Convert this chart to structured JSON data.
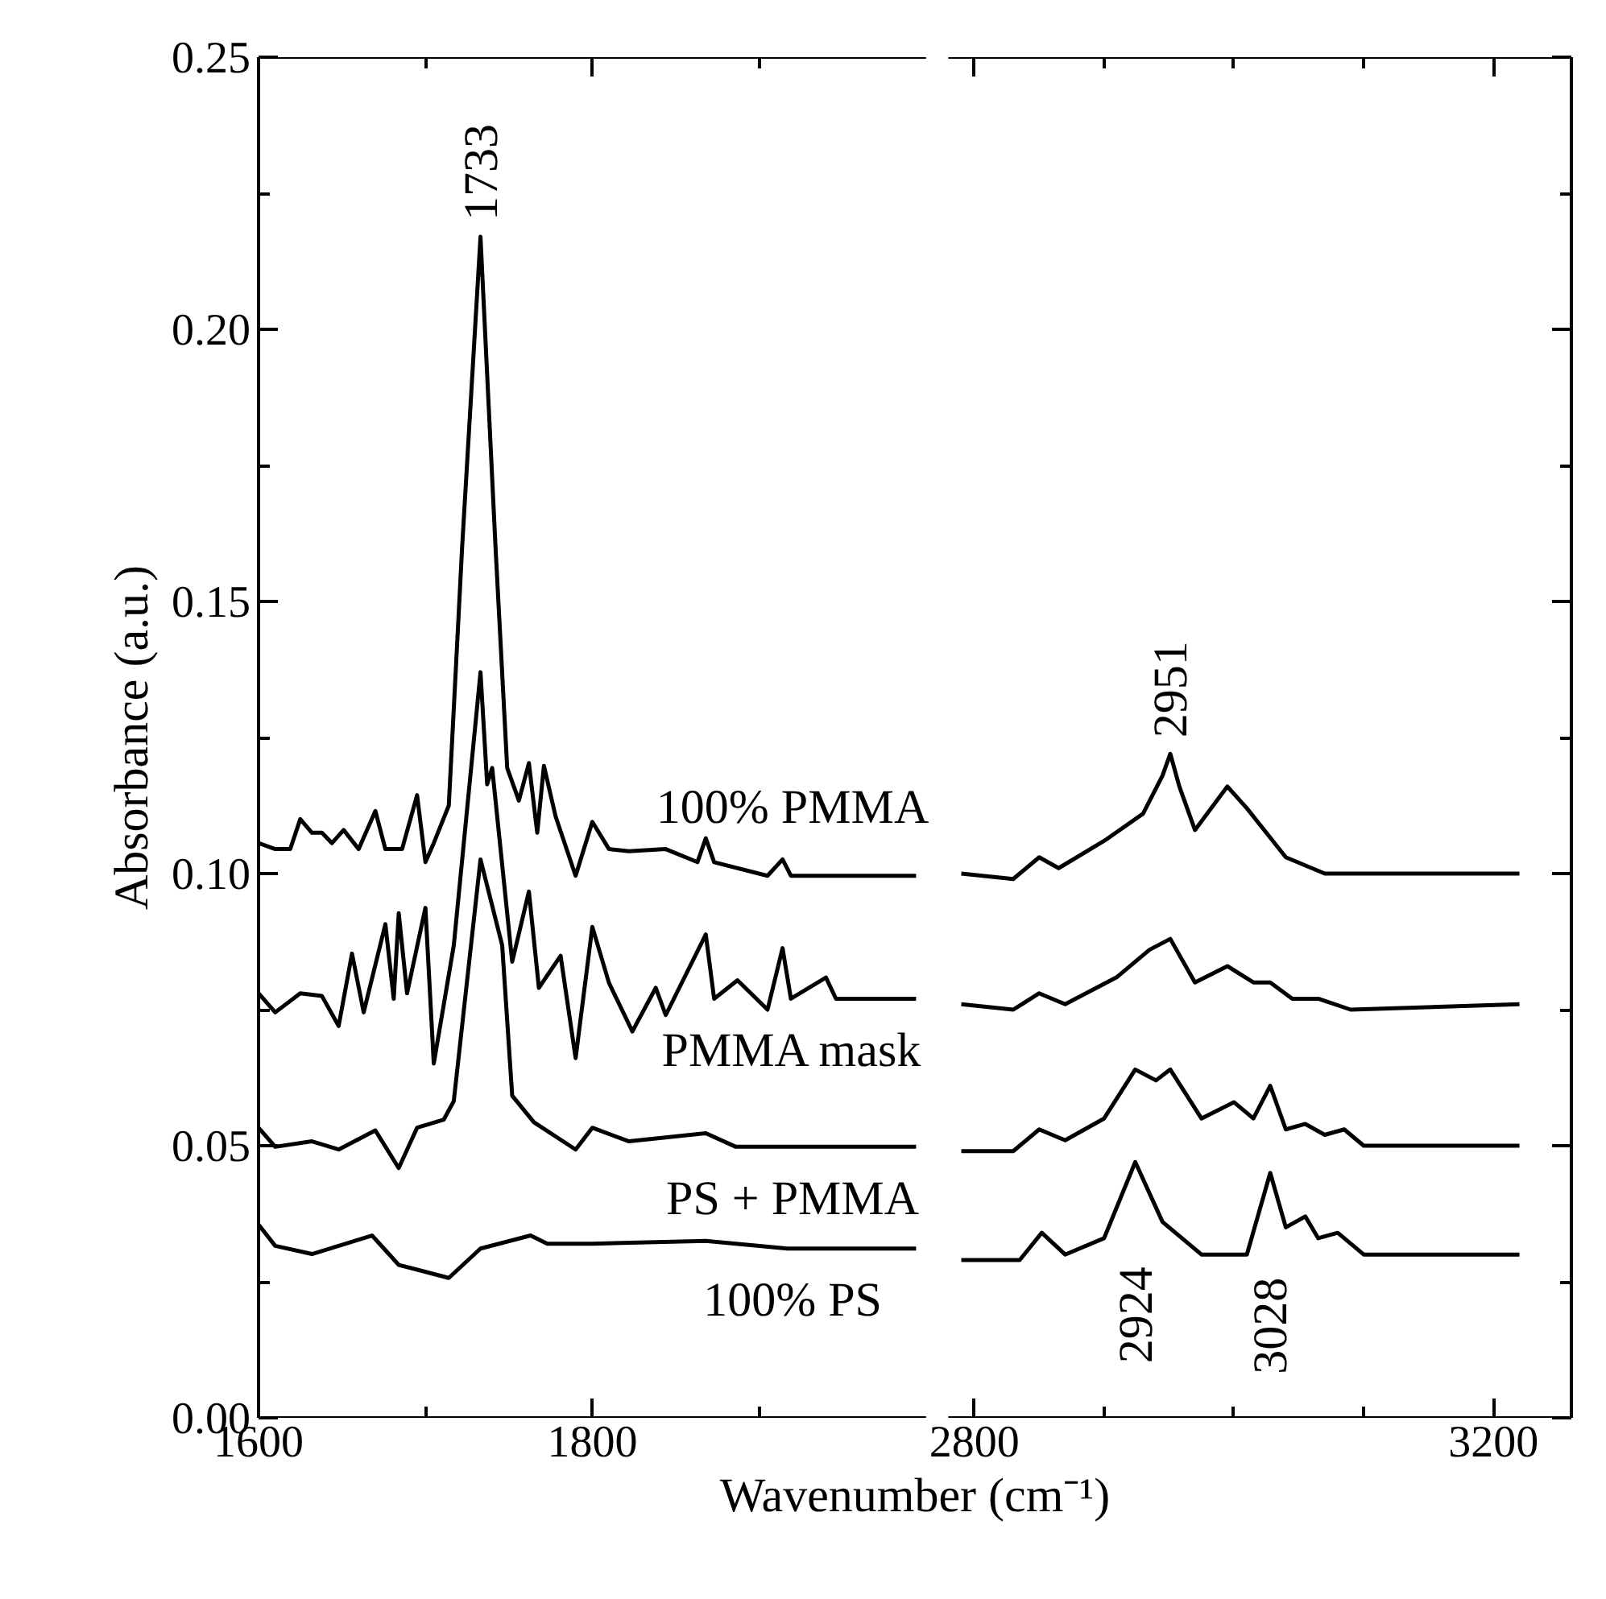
{
  "chart_data": [
    {
      "type": "line",
      "xlabel": "Wavenumber (cm⁻¹)",
      "ylabel": "Absorbance (a.u.)",
      "xlim": [
        1600,
        2000
      ],
      "ylim": [
        0,
        0.25
      ],
      "xticks": [
        1600,
        {
          "value": 1700,
          "label": null
        },
        1800,
        {
          "value": 1900,
          "label": null
        }
      ],
      "yticks": [
        {
          "value": 0,
          "label": "0.00"
        },
        {
          "value": 0.025,
          "label": null
        },
        {
          "value": 0.05,
          "label": "0.05"
        },
        {
          "value": 0.075,
          "label": null
        },
        {
          "value": 0.1,
          "label": "0.10"
        },
        {
          "value": 0.125,
          "label": null
        },
        {
          "value": 0.15,
          "label": "0.15"
        },
        {
          "value": 0.175,
          "label": null
        },
        {
          "value": 0.2,
          "label": "0.20"
        },
        {
          "value": 0.225,
          "label": null
        },
        {
          "value": 0.25,
          "label": "0.25"
        }
      ],
      "series": [
        {
          "name": "100% PMMA",
          "color": "#000000",
          "x": [
            1600,
            1610,
            1619,
            1625,
            1632,
            1638,
            1644,
            1651,
            1660,
            1670,
            1676,
            1686,
            1695,
            1700,
            1705,
            1714,
            1722,
            1733,
            1742,
            1749,
            1756,
            1762,
            1767,
            1771,
            1778,
            1790,
            1800,
            1810,
            1822,
            1844,
            1863,
            1868,
            1873,
            1905,
            1914,
            1919,
            1949,
            1994
          ],
          "values": [
            0.1056,
            0.1045,
            0.1045,
            0.11,
            0.1075,
            0.1075,
            0.1056,
            0.108,
            0.1045,
            0.1115,
            0.1045,
            0.1045,
            0.1144,
            0.1021,
            0.1056,
            0.1125,
            0.16,
            0.217,
            0.16,
            0.1194,
            0.1134,
            0.1203,
            0.1075,
            0.1198,
            0.1105,
            0.0996,
            0.1095,
            0.1045,
            0.1041,
            0.1045,
            0.1021,
            0.1065,
            0.1021,
            0.0996,
            0.1026,
            0.0996,
            0.0996,
            0.0996
          ]
        },
        {
          "name": "PMMA mask",
          "color": "#000000",
          "x": [
            1600,
            1610,
            1625,
            1638,
            1648,
            1656,
            1663,
            1676,
            1681,
            1684,
            1689,
            1700,
            1705,
            1717,
            1733,
            1737,
            1740,
            1752,
            1762,
            1768,
            1781,
            1790,
            1800,
            1810,
            1824,
            1838,
            1844,
            1868,
            1873,
            1887,
            1905,
            1914,
            1919,
            1940,
            1946,
            1994
          ],
          "values": [
            0.078,
            0.0745,
            0.078,
            0.0775,
            0.072,
            0.0853,
            0.0745,
            0.0907,
            0.077,
            0.0927,
            0.078,
            0.0937,
            0.0651,
            0.0868,
            0.137,
            0.1164,
            0.1194,
            0.0838,
            0.0967,
            0.079,
            0.0849,
            0.0661,
            0.0902,
            0.0799,
            0.071,
            0.079,
            0.074,
            0.0888,
            0.077,
            0.0804,
            0.075,
            0.0863,
            0.077,
            0.0809,
            0.077,
            0.077
          ]
        },
        {
          "name": "PS + PMMA",
          "color": "#000000",
          "x": [
            1600,
            1610,
            1632,
            1648,
            1670,
            1684,
            1695,
            1711,
            1717,
            1733,
            1746,
            1752,
            1765,
            1790,
            1800,
            1822,
            1868,
            1886,
            1994
          ],
          "values": [
            0.0533,
            0.0498,
            0.0508,
            0.0493,
            0.0528,
            0.0459,
            0.0533,
            0.0548,
            0.0582,
            0.1026,
            0.0868,
            0.0592,
            0.0543,
            0.0493,
            0.0533,
            0.0508,
            0.0523,
            0.0498,
            0.0498
          ]
        },
        {
          "name": "100% PS",
          "color": "#000000",
          "x": [
            1600,
            1610,
            1632,
            1668,
            1684,
            1714,
            1733,
            1763,
            1773,
            1800,
            1868,
            1917,
            1994
          ],
          "values": [
            0.0355,
            0.0316,
            0.0301,
            0.0335,
            0.0281,
            0.0257,
            0.0311,
            0.0335,
            0.032,
            0.032,
            0.0325,
            0.0311,
            0.0311
          ]
        }
      ],
      "annotations": [
        {
          "text": "1733",
          "x": 1733,
          "y": 0.217
        }
      ]
    },
    {
      "type": "line",
      "xlim": [
        2780,
        3260
      ],
      "ylim": [
        0,
        0.25
      ],
      "tick_labels": "x",
      "xticks": [
        2800,
        {
          "value": 2900,
          "label": null
        },
        {
          "value": 3000,
          "label": null
        },
        {
          "value": 3100,
          "label": null
        },
        3200
      ],
      "yticks": [
        0,
        {
          "value": 0.025,
          "label": null
        },
        0.05,
        {
          "value": 0.075,
          "label": null
        },
        0.1,
        {
          "value": 0.125,
          "label": null
        },
        0.15,
        {
          "value": 0.175,
          "label": null
        },
        0.2,
        {
          "value": 0.225,
          "label": null
        },
        0.25
      ],
      "series": [
        {
          "color": "#000000",
          "x": [
            2790,
            2830,
            2850,
            2865,
            2900,
            2930,
            2945,
            2951,
            2958,
            2970,
            2995,
            3010,
            3040,
            3070,
            3220
          ],
          "values": [
            0.1,
            0.099,
            0.103,
            0.101,
            0.106,
            0.111,
            0.118,
            0.122,
            0.116,
            0.108,
            0.116,
            0.112,
            0.103,
            0.1,
            0.1
          ]
        },
        {
          "color": "#000000",
          "x": [
            2790,
            2830,
            2850,
            2870,
            2910,
            2935,
            2951,
            2970,
            2995,
            3015,
            3028,
            3045,
            3065,
            3090,
            3220
          ],
          "values": [
            0.076,
            0.075,
            0.078,
            0.076,
            0.081,
            0.086,
            0.088,
            0.08,
            0.083,
            0.08,
            0.08,
            0.077,
            0.077,
            0.075,
            0.076
          ]
        },
        {
          "color": "#000000",
          "x": [
            2790,
            2830,
            2850,
            2870,
            2900,
            2924,
            2940,
            2951,
            2975,
            3000,
            3015,
            3028,
            3040,
            3055,
            3070,
            3085,
            3100,
            3220
          ],
          "values": [
            0.049,
            0.049,
            0.053,
            0.051,
            0.055,
            0.064,
            0.062,
            0.064,
            0.055,
            0.058,
            0.055,
            0.061,
            0.053,
            0.054,
            0.052,
            0.053,
            0.05,
            0.05
          ]
        },
        {
          "color": "#000000",
          "x": [
            2790,
            2835,
            2852,
            2870,
            2900,
            2924,
            2945,
            2975,
            3010,
            3028,
            3040,
            3055,
            3065,
            3080,
            3100,
            3220
          ],
          "values": [
            0.029,
            0.029,
            0.034,
            0.03,
            0.033,
            0.047,
            0.036,
            0.03,
            0.03,
            0.045,
            0.035,
            0.037,
            0.033,
            0.034,
            0.03,
            0.03
          ]
        }
      ],
      "annotations": [
        {
          "text": "2951",
          "x": 2951,
          "y": 0.122
        },
        {
          "text": "2924",
          "x": 2924,
          "y": 0.047
        },
        {
          "text": "3028",
          "x": 3028,
          "y": 0.045
        }
      ]
    }
  ]
}
